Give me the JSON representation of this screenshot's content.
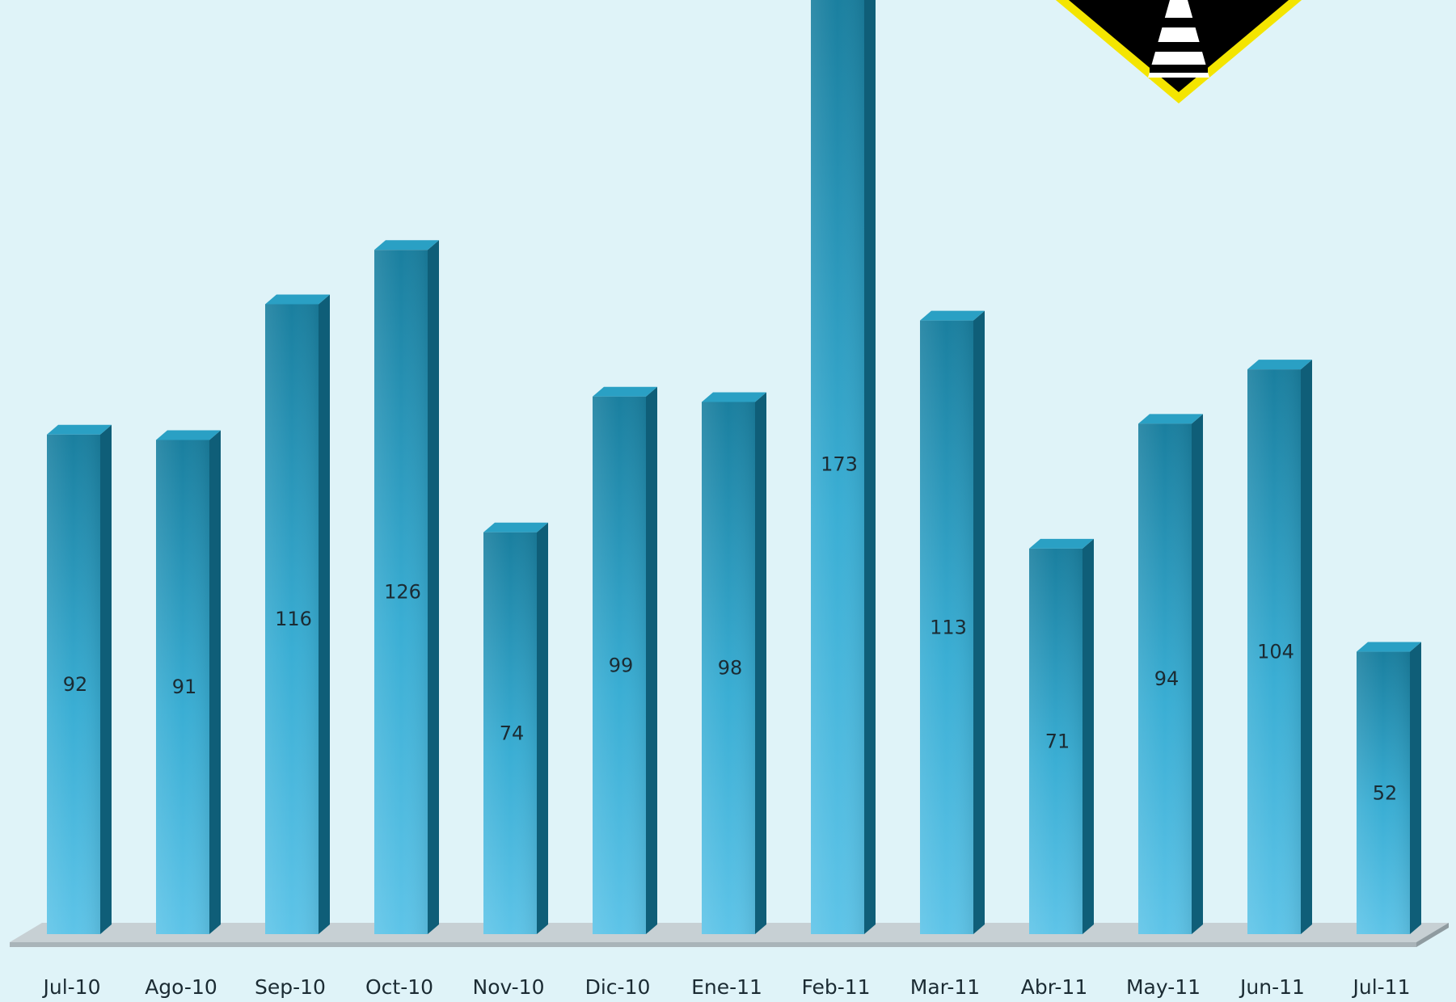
{
  "chart_data": {
    "type": "bar",
    "categories": [
      "Jul-10",
      "Ago-10",
      "Sep-10",
      "Oct-10",
      "Nov-10",
      "Dic-10",
      "Ene-11",
      "Feb-11",
      "Mar-11",
      "Abr-11",
      "May-11",
      "Jun-11",
      "Jul-11"
    ],
    "values": [
      92,
      91,
      116,
      126,
      74,
      99,
      98,
      173,
      113,
      71,
      94,
      104,
      52
    ],
    "title": "",
    "xlabel": "",
    "ylabel": "",
    "ylim": [
      0,
      180
    ],
    "grid": false,
    "legend": "none",
    "style": "3d-column"
  },
  "colors": {
    "background": "#dff3f8",
    "bar_front_light": "#5ec4e8",
    "bar_front_dark": "#1a7f9f",
    "bar_side": "#0f5e78",
    "bar_top": "#2aa0c4",
    "floor": "#c7d0d4",
    "logo_fill": "#000000",
    "logo_border": "#f4e500"
  },
  "icons": {
    "logo": "road-warning-sign-logo"
  }
}
